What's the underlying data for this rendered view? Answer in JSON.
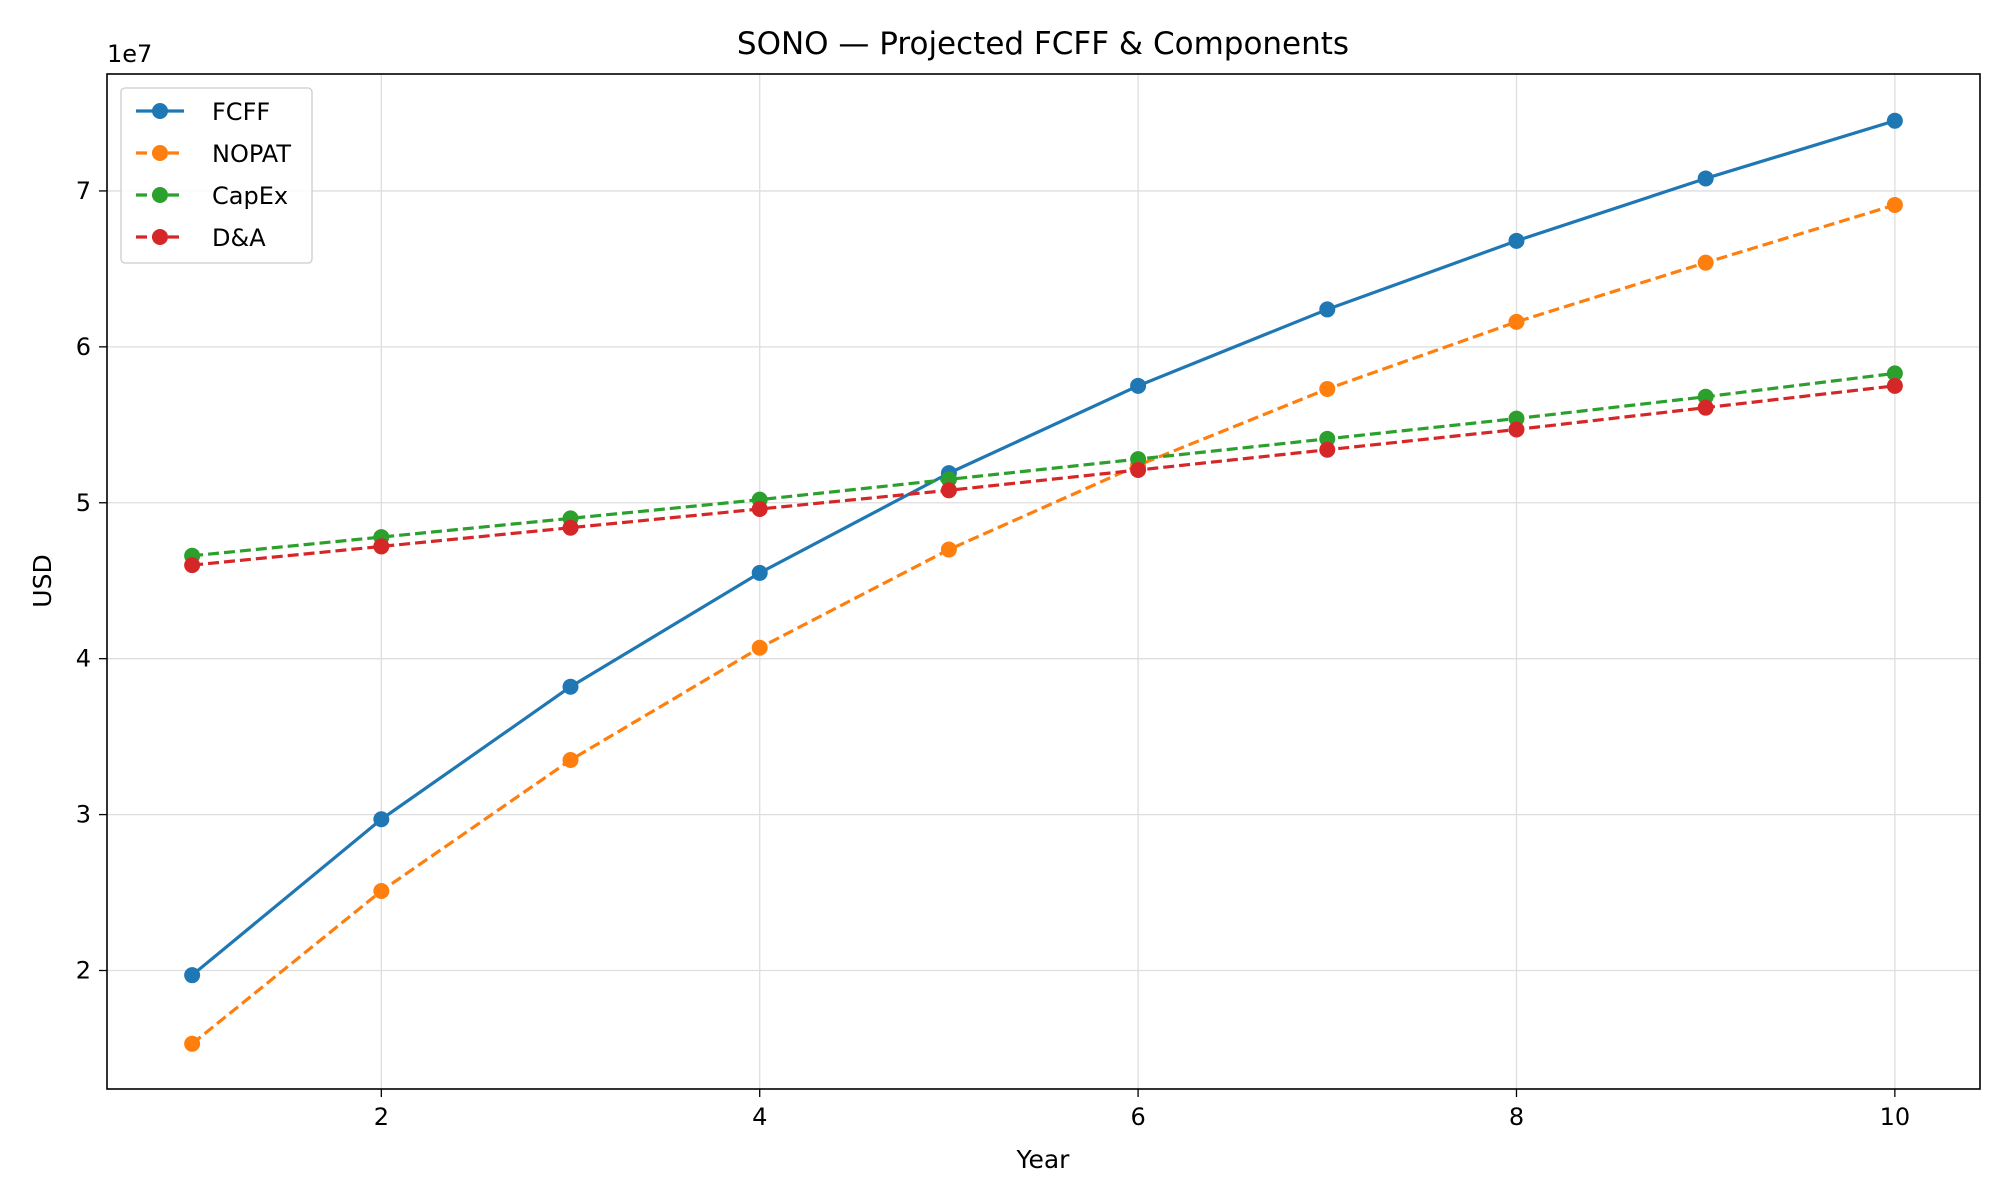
{
  "chart_data": {
    "type": "line",
    "title": "SONO — Projected FCFF & Components",
    "xlabel": "Year",
    "ylabel": "USD",
    "y_offset_label": "1e7",
    "y_scale": 10000000,
    "x": [
      1,
      2,
      3,
      4,
      5,
      6,
      7,
      8,
      9,
      10
    ],
    "xlim": [
      0.55,
      10.45
    ],
    "ylim": [
      12400000,
      77500000
    ],
    "x_ticks": [
      2,
      4,
      6,
      8,
      10
    ],
    "x_tick_labels": [
      "2",
      "4",
      "6",
      "8",
      "10"
    ],
    "y_ticks": [
      20000000,
      30000000,
      40000000,
      50000000,
      60000000,
      70000000
    ],
    "y_tick_labels": [
      "2",
      "3",
      "4",
      "5",
      "6",
      "7"
    ],
    "grid": true,
    "legend_position": "top-left",
    "series": [
      {
        "name": "FCFF",
        "color": "#1f77b4",
        "dashed": false,
        "values": [
          19700000,
          29700000,
          38200000,
          45500000,
          51900000,
          57500000,
          62400000,
          66800000,
          70800000,
          74500000
        ]
      },
      {
        "name": "NOPAT",
        "color": "#ff7f0e",
        "dashed": true,
        "values": [
          15300000,
          25100000,
          33500000,
          40700000,
          47000000,
          52400000,
          57300000,
          61600000,
          65400000,
          69100000
        ]
      },
      {
        "name": "CapEx",
        "color": "#2ca02c",
        "dashed": true,
        "values": [
          46600000,
          47800000,
          49000000,
          50200000,
          51500000,
          52800000,
          54100000,
          55400000,
          56800000,
          58300000
        ]
      },
      {
        "name": "D&A",
        "color": "#d62728",
        "dashed": true,
        "values": [
          46000000,
          47200000,
          48400000,
          49600000,
          50800000,
          52100000,
          53400000,
          54700000,
          56100000,
          57500000
        ]
      }
    ]
  }
}
